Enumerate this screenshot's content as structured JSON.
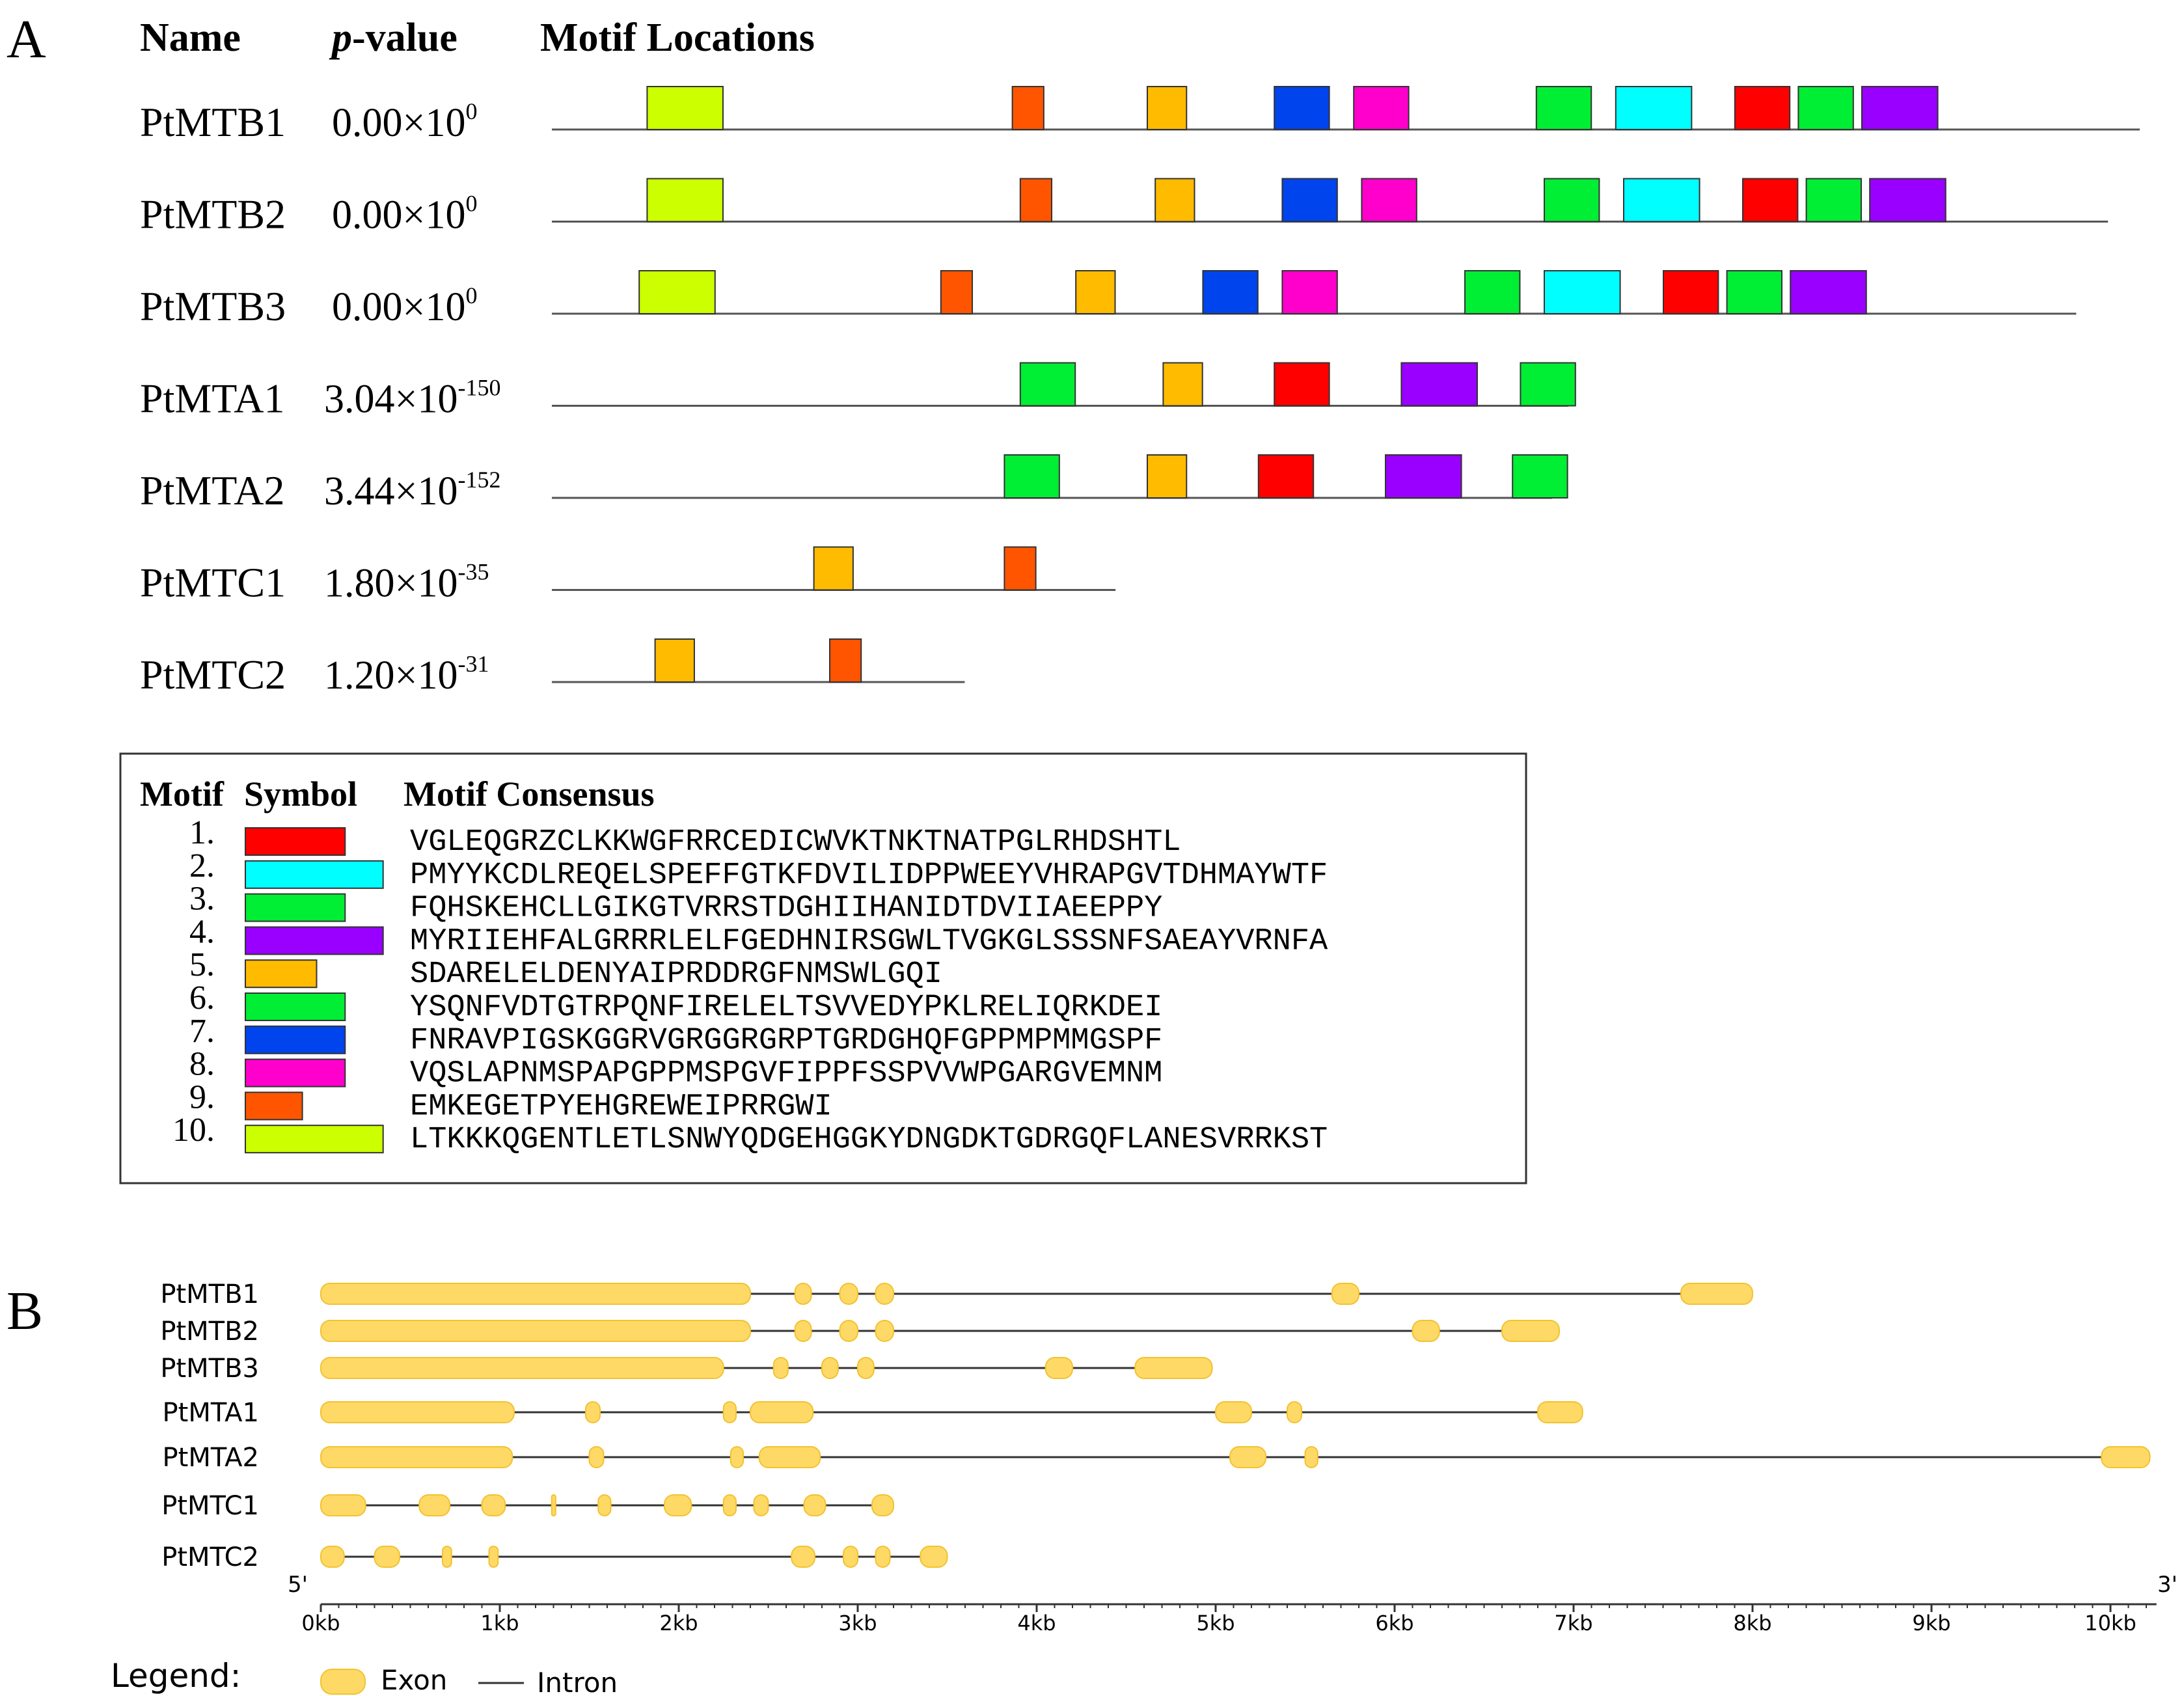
{
  "panel_a": {
    "label": "A",
    "headers": {
      "name": "Name",
      "p_value_italic": "p",
      "p_value_rest": "-value",
      "locations": "Motif Locations"
    },
    "rows": [
      {
        "name": "PtMTB1",
        "pv_base": "0.00×10",
        "pv_exp": "0",
        "length": 1000,
        "motifs": [
          [
            10,
            60
          ],
          [
            9,
            290
          ],
          [
            5,
            375
          ],
          [
            7,
            455
          ],
          [
            8,
            505
          ],
          [
            6,
            620
          ],
          [
            2,
            670
          ],
          [
            1,
            745
          ],
          [
            3,
            785
          ],
          [
            4,
            825
          ]
        ]
      },
      {
        "name": "PtMTB2",
        "pv_base": "0.00×10",
        "pv_exp": "0",
        "length": 980,
        "motifs": [
          [
            10,
            60
          ],
          [
            9,
            295
          ],
          [
            5,
            380
          ],
          [
            7,
            460
          ],
          [
            8,
            510
          ],
          [
            6,
            625
          ],
          [
            2,
            675
          ],
          [
            1,
            750
          ],
          [
            3,
            790
          ],
          [
            4,
            830
          ]
        ]
      },
      {
        "name": "PtMTB3",
        "pv_base": "0.00×10",
        "pv_exp": "0",
        "length": 960,
        "motifs": [
          [
            10,
            55
          ],
          [
            9,
            245
          ],
          [
            5,
            330
          ],
          [
            7,
            410
          ],
          [
            8,
            460
          ],
          [
            6,
            575
          ],
          [
            2,
            625
          ],
          [
            1,
            700
          ],
          [
            3,
            740
          ],
          [
            4,
            780
          ]
        ]
      },
      {
        "name": "PtMTA1",
        "pv_base": "3.04×10",
        "pv_exp": "-150",
        "length": 640,
        "motifs": [
          [
            6,
            295
          ],
          [
            5,
            385
          ],
          [
            1,
            455
          ],
          [
            4,
            535
          ],
          [
            6,
            610
          ]
        ]
      },
      {
        "name": "PtMTA2",
        "pv_base": "3.44×10",
        "pv_exp": "-152",
        "length": 630,
        "motifs": [
          [
            6,
            285
          ],
          [
            5,
            375
          ],
          [
            1,
            445
          ],
          [
            4,
            525
          ],
          [
            6,
            605
          ]
        ]
      },
      {
        "name": "PtMTC1",
        "pv_base": "1.80×10",
        "pv_exp": "-35",
        "length": 355,
        "motifs": [
          [
            5,
            165
          ],
          [
            9,
            285
          ]
        ]
      },
      {
        "name": "PtMTC2",
        "pv_base": "1.20×10",
        "pv_exp": "-31",
        "length": 260,
        "motifs": [
          [
            5,
            65
          ],
          [
            9,
            175
          ]
        ]
      }
    ],
    "legend": {
      "headers": {
        "motif": "Motif",
        "symbol": "Symbol",
        "consensus": "Motif Consensus"
      },
      "motifs": [
        {
          "num": "1.",
          "color": "#ff0000",
          "width": 21,
          "consensus": "VGLEQGRZCLKKWGFRRCEDICWVKTNKTNATPGLRHDSHTL"
        },
        {
          "num": "2.",
          "color": "#00ffff",
          "width": 29,
          "consensus": "PMYYKCDLREQELSPEFFGTKFDVILIDPPWEEYVHRAPGVTDHMAYWTF"
        },
        {
          "num": "3.",
          "color": "#00ee33",
          "width": 21,
          "consensus": "FQHSKEHCLLGIKGTVRRSTDGHIIHANIDTDVIIAEEPPY"
        },
        {
          "num": "4.",
          "color": "#9900ff",
          "width": 29,
          "consensus": "MYRIIEHFALGRRRLELFGEDHNIRSGWLTVGKGLSSSNFSAEAYVRNFA"
        },
        {
          "num": "5.",
          "color": "#ffbb00",
          "width": 15,
          "consensus": "SDARELELDENYAIPRDDRGFNMSWLGQI"
        },
        {
          "num": "6.",
          "color": "#00ee33",
          "width": 21,
          "consensus": "YSQNFVDTGTRPQNFIRELELTSVVEDYPKLRELIQRKDEI"
        },
        {
          "num": "7.",
          "color": "#0044ee",
          "width": 21,
          "consensus": "FNRAVPIGSKGGRVGRGGRGRPTGRDGHQFGPPMPMMGSPF"
        },
        {
          "num": "8.",
          "color": "#ff00cc",
          "width": 21,
          "consensus": "VQSLAPNMSPAPGPPMSPGVFIPPFSSPVVWPGARGVEMNM"
        },
        {
          "num": "9.",
          "color": "#ff5500",
          "width": 12,
          "consensus": "EMKEGETPYEHGREWEIPRRGWI"
        },
        {
          "num": "10.",
          "color": "#ccff00",
          "width": 29,
          "consensus": "LTKKKQGENTLETLSNWYQDGEHGGKYDNGDKTGDRGQFLANESVRRKST"
        }
      ]
    }
  },
  "panel_b": {
    "label": "B",
    "end5": "5'",
    "end3": "3'",
    "axis_max_kb": 10.25,
    "ticks": [
      "0kb",
      "1kb",
      "2kb",
      "3kb",
      "4kb",
      "5kb",
      "6kb",
      "7kb",
      "8kb",
      "9kb",
      "10kb"
    ],
    "genes": [
      {
        "name": "PtMTB1",
        "length": 8.0,
        "exons": [
          [
            0,
            2.4
          ],
          [
            2.65,
            2.74
          ],
          [
            2.9,
            3.0
          ],
          [
            3.1,
            3.2
          ],
          [
            5.65,
            5.8
          ],
          [
            7.6,
            8.0
          ]
        ]
      },
      {
        "name": "PtMTB2",
        "length": 6.92,
        "exons": [
          [
            0,
            2.4
          ],
          [
            2.65,
            2.74
          ],
          [
            2.9,
            3.0
          ],
          [
            3.1,
            3.2
          ],
          [
            6.1,
            6.25
          ],
          [
            6.6,
            6.92
          ]
        ]
      },
      {
        "name": "PtMTB3",
        "length": 4.98,
        "exons": [
          [
            0,
            2.25
          ],
          [
            2.53,
            2.61
          ],
          [
            2.8,
            2.89
          ],
          [
            3.0,
            3.09
          ],
          [
            4.05,
            4.2
          ],
          [
            4.55,
            4.98
          ]
        ]
      },
      {
        "name": "PtMTA1",
        "length": 7.05,
        "exons": [
          [
            0,
            1.08
          ],
          [
            1.48,
            1.56
          ],
          [
            2.25,
            2.32
          ],
          [
            2.4,
            2.75
          ],
          [
            5.0,
            5.2
          ],
          [
            5.4,
            5.48
          ],
          [
            6.8,
            7.05
          ]
        ]
      },
      {
        "name": "PtMTA2",
        "length": 10.22,
        "exons": [
          [
            0,
            1.07
          ],
          [
            1.5,
            1.58
          ],
          [
            2.29,
            2.36
          ],
          [
            2.45,
            2.79
          ],
          [
            5.08,
            5.28
          ],
          [
            5.5,
            5.57
          ],
          [
            9.95,
            10.22
          ]
        ]
      },
      {
        "name": "PtMTC1",
        "length": 3.2,
        "exons": [
          [
            0,
            0.25
          ],
          [
            0.55,
            0.72
          ],
          [
            0.9,
            1.03
          ],
          [
            1.29,
            1.31
          ],
          [
            1.55,
            1.62
          ],
          [
            1.92,
            2.07
          ],
          [
            2.25,
            2.32
          ],
          [
            2.42,
            2.5
          ],
          [
            2.7,
            2.82
          ],
          [
            3.08,
            3.2
          ]
        ]
      },
      {
        "name": "PtMTC2",
        "length": 3.5,
        "exons": [
          [
            0,
            0.13
          ],
          [
            0.3,
            0.44
          ],
          [
            0.68,
            0.73
          ],
          [
            0.94,
            0.99
          ],
          [
            2.63,
            2.76
          ],
          [
            2.92,
            3.0
          ],
          [
            3.1,
            3.18
          ],
          [
            3.35,
            3.5
          ]
        ]
      }
    ],
    "legend": {
      "title": "Legend:",
      "exon": "Exon",
      "intron": "Intron"
    }
  },
  "colors": {
    "exon": "#ffd966",
    "exon_edge": "#f2c230",
    "line": "#555555"
  }
}
